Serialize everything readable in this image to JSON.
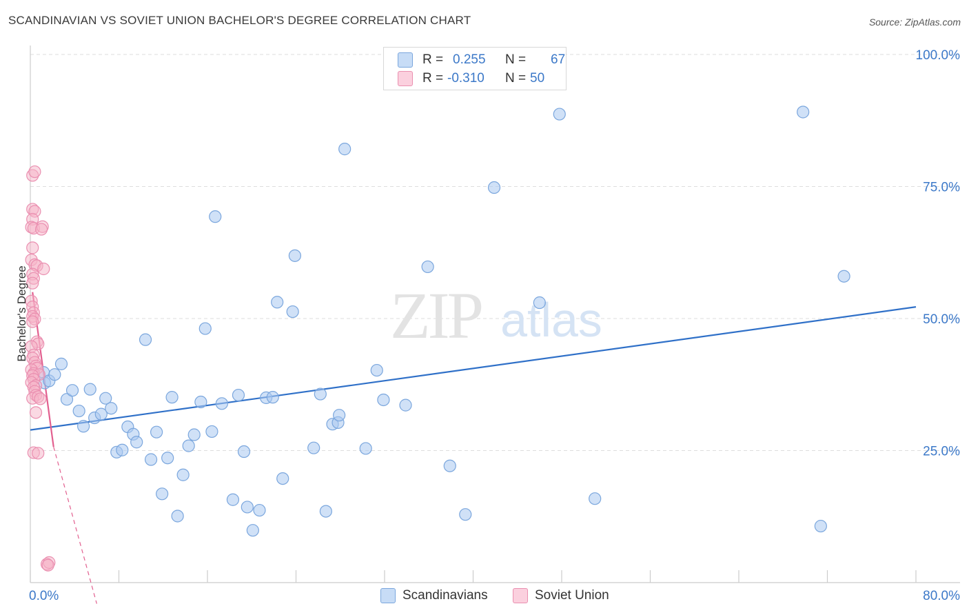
{
  "title": "SCANDINAVIAN VS SOVIET UNION BACHELOR'S DEGREE CORRELATION CHART",
  "source": "Source: ZipAtlas.com",
  "watermark": {
    "zip": "ZIP",
    "atlas": "atlas"
  },
  "legend_stats": [
    {
      "r_label": "R =",
      "r_value": "0.255",
      "n_label": "N =",
      "n_value": "67",
      "color": "#aac9f0"
    },
    {
      "r_label": "R =",
      "r_value": "-0.310",
      "n_label": "N =",
      "n_value": "50",
      "color": "#f6b3c8"
    }
  ],
  "colors": {
    "blue_fill": "#aac9f0",
    "blue_stroke": "#7aa6dd",
    "blue_line": "#2f70c8",
    "pink_fill": "#f6b3c8",
    "pink_stroke": "#ea8fb0",
    "pink_line": "#e25f8f",
    "axis_text": "#3b78c8",
    "grid": "#dddddd"
  },
  "chart_data": {
    "type": "scatter",
    "title": "SCANDINAVIAN VS SOVIET UNION BACHELOR'S DEGREE CORRELATION CHART",
    "xlabel": "",
    "ylabel": "Bachelor's Degree",
    "xlim": [
      0,
      80
    ],
    "ylim": [
      0,
      100
    ],
    "x_tick_labels": [
      "0.0%",
      "80.0%"
    ],
    "y_tick_labels": [
      "25.0%",
      "50.0%",
      "75.0%",
      "100.0%"
    ],
    "y_ticks": [
      25,
      50,
      75,
      100
    ],
    "grid": true,
    "legend_position": "bottom-center",
    "series": [
      {
        "name": "Scandinavians",
        "color": "#aac9f0",
        "trend": {
          "x": [
            0,
            80
          ],
          "y": [
            28.9,
            52.2
          ]
        },
        "points": [
          [
            1.2,
            39.8
          ],
          [
            1.3,
            37.8
          ],
          [
            1.7,
            38.2
          ],
          [
            2.2,
            39.4
          ],
          [
            2.8,
            41.4
          ],
          [
            3.3,
            34.7
          ],
          [
            3.8,
            36.4
          ],
          [
            4.4,
            32.5
          ],
          [
            4.8,
            29.6
          ],
          [
            5.4,
            36.6
          ],
          [
            5.8,
            31.2
          ],
          [
            6.4,
            31.9
          ],
          [
            6.8,
            34.9
          ],
          [
            7.3,
            33.0
          ],
          [
            7.8,
            24.7
          ],
          [
            8.3,
            25.1
          ],
          [
            8.8,
            29.5
          ],
          [
            9.3,
            28.1
          ],
          [
            9.6,
            26.6
          ],
          [
            10.4,
            46.0
          ],
          [
            10.9,
            23.3
          ],
          [
            11.4,
            28.5
          ],
          [
            11.9,
            16.8
          ],
          [
            12.4,
            23.6
          ],
          [
            12.8,
            35.1
          ],
          [
            13.3,
            12.6
          ],
          [
            13.8,
            20.4
          ],
          [
            14.3,
            25.9
          ],
          [
            14.8,
            28.0
          ],
          [
            15.4,
            34.2
          ],
          [
            15.8,
            48.1
          ],
          [
            16.4,
            28.6
          ],
          [
            16.7,
            69.3
          ],
          [
            17.3,
            33.9
          ],
          [
            18.3,
            15.7
          ],
          [
            18.8,
            35.5
          ],
          [
            19.3,
            24.8
          ],
          [
            19.6,
            14.3
          ],
          [
            20.1,
            9.9
          ],
          [
            20.7,
            13.7
          ],
          [
            21.3,
            35.0
          ],
          [
            21.9,
            35.1
          ],
          [
            22.3,
            53.1
          ],
          [
            22.8,
            19.7
          ],
          [
            23.7,
            51.3
          ],
          [
            23.9,
            61.9
          ],
          [
            25.6,
            25.5
          ],
          [
            26.2,
            35.7
          ],
          [
            26.7,
            13.5
          ],
          [
            27.3,
            30.0
          ],
          [
            27.8,
            30.3
          ],
          [
            27.9,
            31.7
          ],
          [
            28.4,
            82.1
          ],
          [
            30.3,
            25.4
          ],
          [
            31.3,
            40.2
          ],
          [
            31.9,
            34.6
          ],
          [
            33.9,
            33.6
          ],
          [
            35.9,
            59.8
          ],
          [
            37.9,
            22.1
          ],
          [
            39.3,
            12.9
          ],
          [
            41.9,
            74.8
          ],
          [
            46.0,
            53.0
          ],
          [
            47.8,
            88.7
          ],
          [
            51.0,
            15.9
          ],
          [
            69.8,
            89.1
          ],
          [
            71.4,
            10.7
          ],
          [
            73.5,
            58.0
          ]
        ]
      },
      {
        "name": "Soviet Union",
        "color": "#f6b3c8",
        "trend": {
          "x": [
            0.2,
            2.1
          ],
          "y": [
            55.0,
            25.7
          ]
        },
        "trend_ext": {
          "x": [
            2.1,
            6.0
          ],
          "y": [
            25.7,
            -4.0
          ]
        },
        "points": [
          [
            0.2,
            77.1
          ],
          [
            0.4,
            77.8
          ],
          [
            0.2,
            70.7
          ],
          [
            0.4,
            70.3
          ],
          [
            0.2,
            68.8
          ],
          [
            0.1,
            67.3
          ],
          [
            0.3,
            67.1
          ],
          [
            1.1,
            67.4
          ],
          [
            1.0,
            66.9
          ],
          [
            0.2,
            63.4
          ],
          [
            0.1,
            61.1
          ],
          [
            0.4,
            60.2
          ],
          [
            0.6,
            60.0
          ],
          [
            0.2,
            58.4
          ],
          [
            0.3,
            57.6
          ],
          [
            0.2,
            56.7
          ],
          [
            1.2,
            59.4
          ],
          [
            0.1,
            53.3
          ],
          [
            0.2,
            52.2
          ],
          [
            0.3,
            51.1
          ],
          [
            0.2,
            50.4
          ],
          [
            0.4,
            49.9
          ],
          [
            0.2,
            49.4
          ],
          [
            0.6,
            45.6
          ],
          [
            0.7,
            45.2
          ],
          [
            0.1,
            44.7
          ],
          [
            0.3,
            43.1
          ],
          [
            0.2,
            42.5
          ],
          [
            0.4,
            41.7
          ],
          [
            0.5,
            41.0
          ],
          [
            0.6,
            40.6
          ],
          [
            0.1,
            40.3
          ],
          [
            0.3,
            39.6
          ],
          [
            0.8,
            39.4
          ],
          [
            0.2,
            39.2
          ],
          [
            0.3,
            38.5
          ],
          [
            0.1,
            37.9
          ],
          [
            0.5,
            37.3
          ],
          [
            0.3,
            37.0
          ],
          [
            0.4,
            36.2
          ],
          [
            0.5,
            35.5
          ],
          [
            0.2,
            34.9
          ],
          [
            0.7,
            35.2
          ],
          [
            0.9,
            34.8
          ],
          [
            0.5,
            32.2
          ],
          [
            0.3,
            24.6
          ],
          [
            0.7,
            24.5
          ],
          [
            1.5,
            3.5
          ],
          [
            1.7,
            3.8
          ],
          [
            1.6,
            3.3
          ]
        ]
      }
    ]
  }
}
